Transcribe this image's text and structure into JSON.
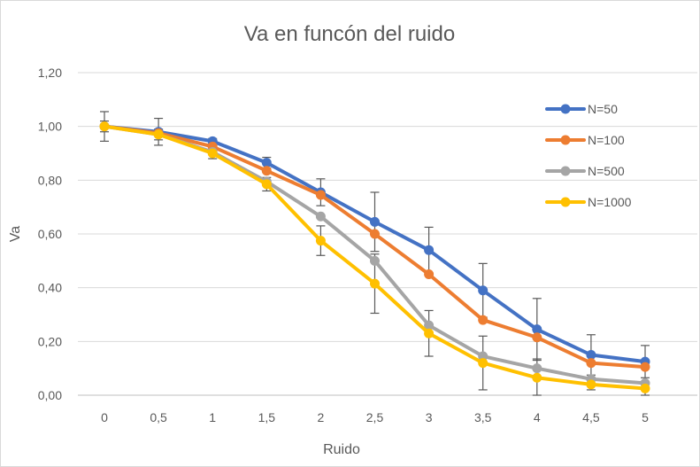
{
  "chart_data": {
    "type": "line",
    "title": "Va en funcón del ruido",
    "xlabel": "Ruido",
    "ylabel": "Va",
    "x": [
      0,
      0.5,
      1,
      1.5,
      2,
      2.5,
      3,
      3.5,
      4,
      4.5,
      5
    ],
    "x_tick_labels": [
      "0",
      "0,5",
      "1",
      "1,5",
      "2",
      "2,5",
      "3",
      "3,5",
      "4",
      "4,5",
      "5"
    ],
    "y_ticks": [
      0,
      0.2,
      0.4,
      0.6,
      0.8,
      1.0,
      1.2
    ],
    "y_tick_labels": [
      "0,00",
      "0,20",
      "0,40",
      "0,60",
      "0,80",
      "1,00",
      "1,20"
    ],
    "ylim": [
      0,
      1.2
    ],
    "grid": true,
    "legend_position": "right",
    "series": [
      {
        "name": "N=50",
        "color": "#4472c4",
        "values": [
          1.0,
          0.98,
          0.945,
          0.865,
          0.755,
          0.645,
          0.54,
          0.39,
          0.245,
          0.15,
          0.125
        ],
        "errors": [
          0.055,
          0.05,
          0.01,
          0.02,
          0.05,
          0.11,
          0.085,
          0.1,
          0.115,
          0.075,
          0.06
        ]
      },
      {
        "name": "N=100",
        "color": "#ed7d31",
        "values": [
          1.0,
          0.975,
          0.925,
          0.835,
          0.745,
          0.6,
          0.45,
          0.28,
          0.215,
          0.12,
          0.105
        ],
        "errors": [
          0,
          0,
          0,
          0,
          0,
          0,
          0,
          0,
          0,
          0,
          0
        ]
      },
      {
        "name": "N=500",
        "color": "#a5a5a5",
        "values": [
          1.0,
          0.97,
          0.905,
          0.795,
          0.665,
          0.5,
          0.26,
          0.145,
          0.1,
          0.06,
          0.045
        ],
        "errors": [
          0,
          0,
          0,
          0,
          0,
          0,
          0,
          0,
          0,
          0,
          0
        ]
      },
      {
        "name": "N=1000",
        "color": "#ffc000",
        "values": [
          1.0,
          0.97,
          0.9,
          0.785,
          0.575,
          0.415,
          0.23,
          0.12,
          0.065,
          0.04,
          0.025
        ],
        "errors": [
          0.02,
          0.02,
          0.02,
          0.025,
          0.055,
          0.11,
          0.085,
          0.1,
          0.07,
          0.02,
          0.025
        ]
      }
    ]
  }
}
